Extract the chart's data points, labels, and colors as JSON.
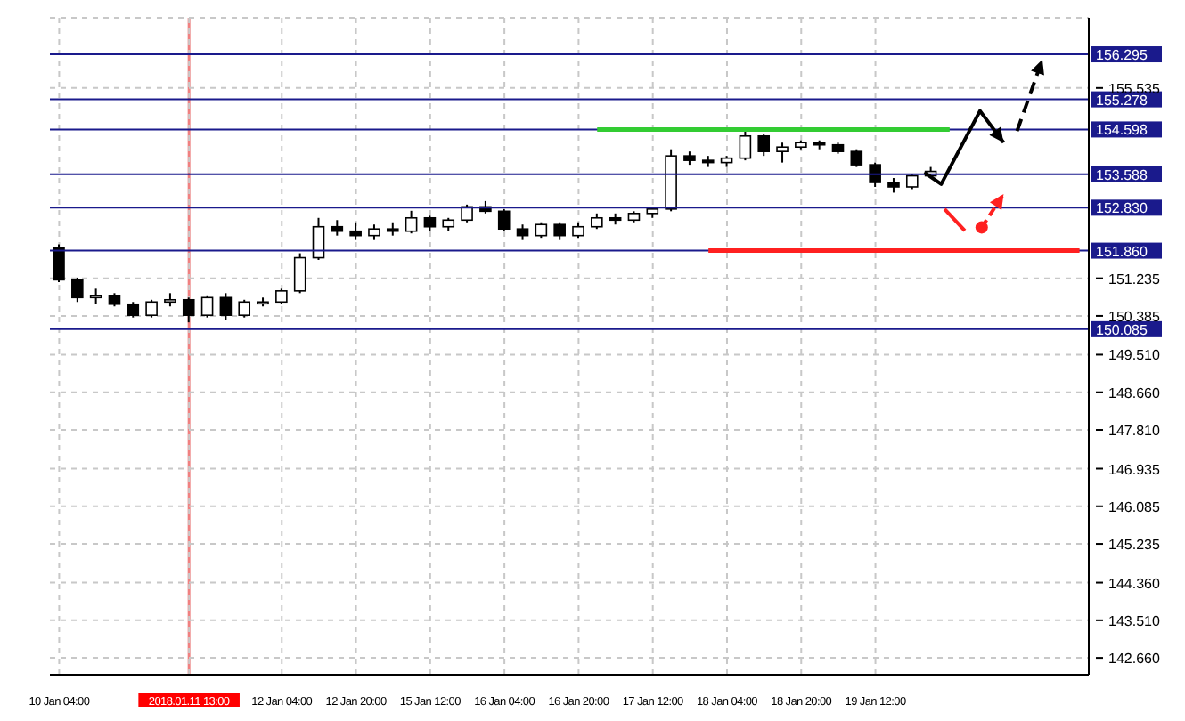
{
  "chart_data": {
    "type": "candlestick",
    "categories": [
      "10 Jan 04:00",
      null,
      null,
      null,
      null,
      null,
      null,
      "2018.01.11 13:00",
      null,
      null,
      null,
      null,
      "12 Jan 04:00",
      null,
      null,
      null,
      "12 Jan 20:00",
      null,
      null,
      null,
      "15 Jan 12:00",
      null,
      null,
      null,
      "16 Jan 04:00",
      null,
      null,
      null,
      "16 Jan 20:00",
      null,
      null,
      null,
      "17 Jan 12:00",
      null,
      null,
      null,
      "18 Jan 04:00",
      null,
      null,
      null,
      "18 Jan 20:00",
      null,
      null,
      null,
      "19 Jan 12:00",
      null,
      null,
      null,
      null,
      null,
      null,
      null,
      null,
      null,
      null,
      null
    ],
    "ohlc": [
      [
        151.93,
        152.0,
        151.15,
        151.2
      ],
      [
        151.2,
        151.25,
        150.7,
        150.8
      ],
      [
        150.8,
        151.0,
        150.65,
        150.85
      ],
      [
        150.85,
        150.9,
        150.6,
        150.65
      ],
      [
        150.65,
        150.7,
        150.35,
        150.4
      ],
      [
        150.4,
        150.75,
        150.35,
        150.7
      ],
      [
        150.7,
        150.9,
        150.6,
        150.75
      ],
      [
        150.75,
        150.8,
        150.24,
        150.4
      ],
      [
        150.4,
        150.85,
        150.35,
        150.8
      ],
      [
        150.8,
        150.9,
        150.3,
        150.4
      ],
      [
        150.4,
        150.75,
        150.35,
        150.7
      ],
      [
        150.7,
        150.8,
        150.6,
        150.7
      ],
      [
        150.7,
        151.0,
        150.65,
        150.95
      ],
      [
        150.95,
        151.8,
        150.9,
        151.7
      ],
      [
        151.7,
        152.6,
        151.65,
        152.4
      ],
      [
        152.4,
        152.55,
        152.2,
        152.3
      ],
      [
        152.3,
        152.5,
        152.1,
        152.2
      ],
      [
        152.2,
        152.45,
        152.1,
        152.35
      ],
      [
        152.35,
        152.5,
        152.2,
        152.3
      ],
      [
        152.3,
        152.76,
        152.25,
        152.6
      ],
      [
        152.6,
        152.65,
        152.3,
        152.4
      ],
      [
        152.4,
        152.6,
        152.3,
        152.55
      ],
      [
        152.55,
        152.9,
        152.5,
        152.85
      ],
      [
        152.85,
        152.98,
        152.7,
        152.75
      ],
      [
        152.75,
        152.8,
        152.3,
        152.35
      ],
      [
        152.35,
        152.45,
        152.1,
        152.2
      ],
      [
        152.2,
        152.5,
        152.15,
        152.45
      ],
      [
        152.45,
        152.5,
        152.1,
        152.2
      ],
      [
        152.2,
        152.5,
        152.15,
        152.4
      ],
      [
        152.4,
        152.7,
        152.35,
        152.6
      ],
      [
        152.6,
        152.7,
        152.45,
        152.55
      ],
      [
        152.55,
        152.75,
        152.5,
        152.7
      ],
      [
        152.7,
        152.85,
        152.6,
        152.8
      ],
      [
        152.8,
        154.15,
        152.75,
        154.0
      ],
      [
        154.0,
        154.1,
        153.8,
        153.9
      ],
      [
        153.9,
        154.0,
        153.75,
        153.85
      ],
      [
        153.85,
        154.0,
        153.75,
        153.95
      ],
      [
        153.95,
        154.56,
        153.9,
        154.45
      ],
      [
        154.45,
        154.5,
        154.0,
        154.1
      ],
      [
        154.1,
        154.3,
        153.85,
        154.2
      ],
      [
        154.2,
        154.35,
        154.15,
        154.3
      ],
      [
        154.3,
        154.35,
        154.15,
        154.25
      ],
      [
        154.25,
        154.3,
        154.05,
        154.1
      ],
      [
        154.1,
        154.15,
        153.75,
        153.8
      ],
      [
        153.8,
        153.85,
        153.3,
        153.4
      ],
      [
        153.4,
        153.5,
        153.17,
        153.3
      ],
      [
        153.3,
        153.6,
        153.25,
        153.55
      ],
      [
        153.55,
        153.75,
        153.5,
        153.65
      ],
      null,
      null,
      null,
      null,
      null,
      null,
      null,
      null
    ],
    "series": [
      {
        "type": "line",
        "color": "#33cc33",
        "values": [
          null,
          null,
          null,
          null,
          null,
          null,
          null,
          null,
          null,
          null,
          null,
          null,
          null,
          null,
          null,
          null,
          null,
          null,
          null,
          null,
          null,
          null,
          null,
          null,
          null,
          null,
          null,
          null,
          null,
          154.598,
          154.598,
          154.598,
          154.598,
          154.598,
          154.598,
          154.598,
          154.598,
          154.598,
          154.598,
          154.598,
          154.598,
          154.598,
          154.598,
          154.598,
          154.598,
          154.598,
          154.598,
          154.598,
          154.598,
          null,
          null,
          null,
          null,
          null,
          null,
          null
        ]
      },
      {
        "type": "line",
        "color": "#ff2020",
        "values": [
          null,
          null,
          null,
          null,
          null,
          null,
          null,
          null,
          null,
          null,
          null,
          null,
          null,
          null,
          null,
          null,
          null,
          null,
          null,
          null,
          null,
          null,
          null,
          null,
          null,
          null,
          null,
          null,
          null,
          null,
          null,
          null,
          null,
          null,
          null,
          151.86,
          151.86,
          151.86,
          151.86,
          151.86,
          151.86,
          151.86,
          151.86,
          151.86,
          151.86,
          151.86,
          151.86,
          151.86,
          151.86,
          151.86,
          151.86,
          151.86,
          151.86,
          151.86,
          151.86,
          151.86
        ]
      }
    ],
    "ylim": [
      142.28,
      157.12
    ],
    "yticks": [
      {
        "value": 142.66,
        "label": "142.660"
      },
      {
        "value": 143.51,
        "label": "143.510"
      },
      {
        "value": 144.36,
        "label": "144.360"
      },
      {
        "value": 145.235,
        "label": "145.235"
      },
      {
        "value": 146.085,
        "label": "146.085"
      },
      {
        "value": 146.935,
        "label": "146.935"
      },
      {
        "value": 147.81,
        "label": "147.810"
      },
      {
        "value": 148.66,
        "label": "148.660"
      },
      {
        "value": 149.51,
        "label": "149.510"
      },
      {
        "value": 150.385,
        "label": "150.385"
      },
      {
        "value": 151.235,
        "label": "151.235"
      },
      {
        "value": 155.535,
        "label": "155.535"
      }
    ],
    "ref_lines": [
      {
        "axis": "y",
        "value": 156.295,
        "label": "156.295",
        "color": "#1a1a8c"
      },
      {
        "axis": "y",
        "value": 155.278,
        "label": "155.278",
        "color": "#1a1a8c"
      },
      {
        "axis": "y",
        "value": 154.598,
        "label": "154.598",
        "color": "#1a1a8c"
      },
      {
        "axis": "y",
        "value": 153.588,
        "label": "153.588",
        "color": "#1a1a8c"
      },
      {
        "axis": "y",
        "value": 152.83,
        "label": "152.830",
        "color": "#1a1a8c"
      },
      {
        "axis": "y",
        "value": 151.86,
        "label": "151.860",
        "color": "#1a1a8c"
      },
      {
        "axis": "y",
        "value": 150.085,
        "label": "150.085",
        "color": "#1a1a8c"
      },
      {
        "axis": "x",
        "value": "2018.01.11 13:00",
        "color": "#f08080"
      }
    ],
    "grid": true
  }
}
